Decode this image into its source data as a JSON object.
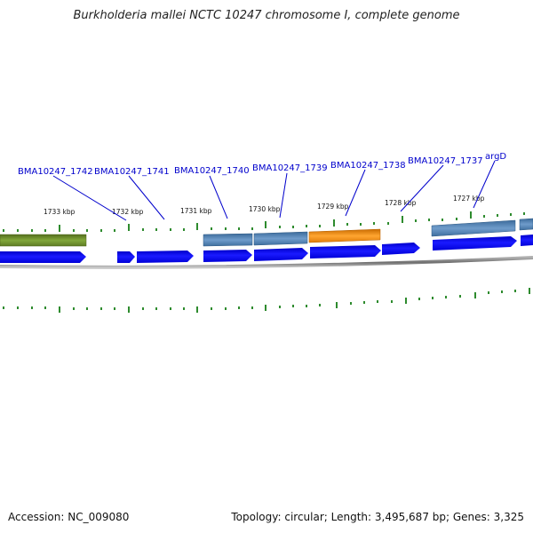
{
  "title": "Burkholderia mallei NCTC 10247 chromosome I, complete genome",
  "footer": {
    "accession": "Accession: NC_009080",
    "summary": "Topology: circular; Length: 3,495,687 bp; Genes: 3,325"
  },
  "colors": {
    "cds_blue": "#0000ee",
    "gene_steel": "#4f7fb0",
    "gene_orange": "#f08a10",
    "gene_olive": "#6b8a2a",
    "tick_green": "#2e8b2e",
    "label_blue": "#0000cc",
    "backbone_gray": "#888888"
  },
  "gene_labels": [
    "BMA10247_1742",
    "BMA10247_1741",
    "BMA10247_1740",
    "BMA10247_1739",
    "BMA10247_1738",
    "BMA10247_1737",
    "argD"
  ],
  "kbp_labels": [
    "1733 kbp",
    "1732 kbp",
    "1731 kbp",
    "1730 kbp",
    "1729 kbp",
    "1728 kbp",
    "1727 kbp"
  ]
}
